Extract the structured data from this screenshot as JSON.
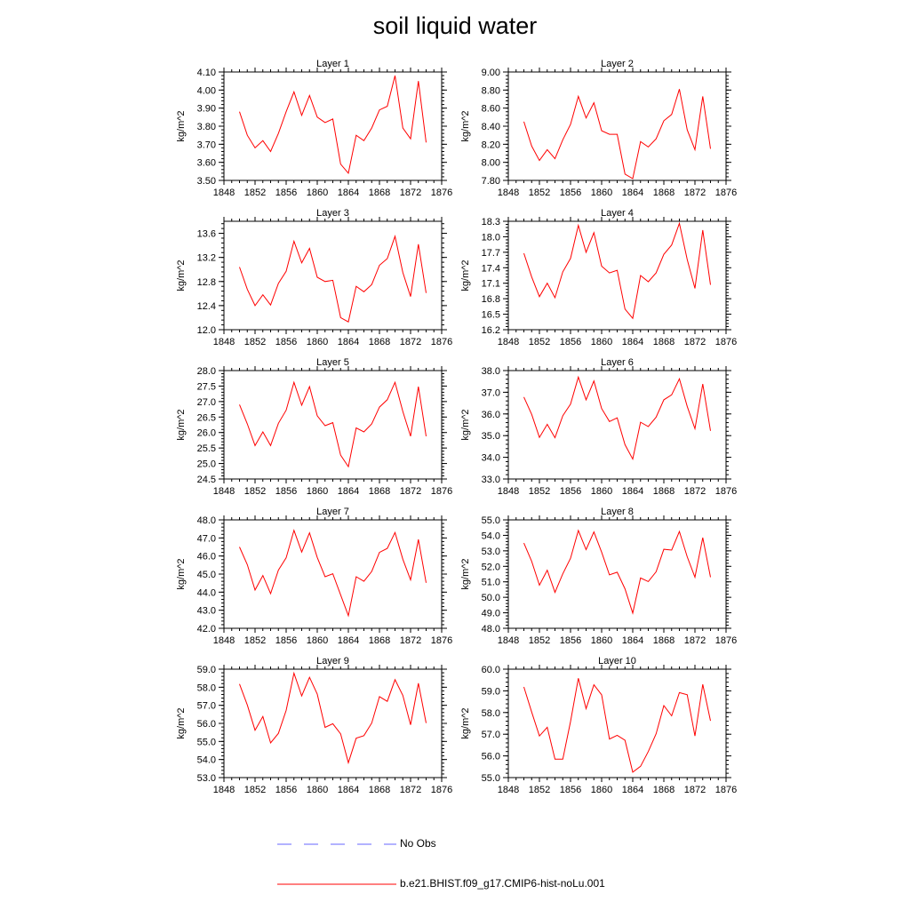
{
  "title": "soil liquid water",
  "colors": {
    "model": "#ff0000",
    "obs": "#6666ff",
    "axis": "#000000"
  },
  "legend": {
    "obs_label": "No Obs",
    "model_label": "b.e21.BHIST.f09_g17.CMIP6-hist-noLu.001"
  },
  "chart_data": [
    {
      "type": "line",
      "title": "Layer 1",
      "ylabel": "kg/m^2",
      "xlim": [
        1848,
        1876
      ],
      "x_ticks": [
        1848,
        1852,
        1856,
        1860,
        1864,
        1868,
        1872,
        1876
      ],
      "ylim": [
        3.5,
        4.1
      ],
      "y_ticks": [
        "3.50",
        "3.60",
        "3.70",
        "3.80",
        "3.90",
        "4.00",
        "4.10"
      ],
      "series": [
        {
          "x": [
            1850,
            1851,
            1852,
            1853,
            1854,
            1855,
            1856,
            1857,
            1858,
            1859,
            1860,
            1861,
            1862,
            1863,
            1864,
            1865,
            1866,
            1867,
            1868,
            1869,
            1870,
            1871,
            1872,
            1873,
            1874
          ],
          "values": [
            3.88,
            3.75,
            3.68,
            3.72,
            3.66,
            3.76,
            3.88,
            3.99,
            3.86,
            3.97,
            3.85,
            3.82,
            3.84,
            3.59,
            3.54,
            3.75,
            3.72,
            3.79,
            3.89,
            3.91,
            4.08,
            3.79,
            3.73,
            4.05,
            3.71
          ]
        }
      ]
    },
    {
      "type": "line",
      "title": "Layer 2",
      "ylabel": "kg/m^2",
      "xlim": [
        1848,
        1876
      ],
      "x_ticks": [
        1848,
        1852,
        1856,
        1860,
        1864,
        1868,
        1872,
        1876
      ],
      "ylim": [
        7.8,
        9.0
      ],
      "y_ticks": [
        "7.80",
        "8.00",
        "8.20",
        "8.40",
        "8.60",
        "8.80",
        "9.00"
      ],
      "series": [
        {
          "x": [
            1850,
            1851,
            1852,
            1853,
            1854,
            1855,
            1856,
            1857,
            1858,
            1859,
            1860,
            1861,
            1862,
            1863,
            1864,
            1865,
            1866,
            1867,
            1868,
            1869,
            1870,
            1871,
            1872,
            1873,
            1874
          ],
          "values": [
            8.45,
            8.18,
            8.02,
            8.14,
            8.04,
            8.25,
            8.42,
            8.73,
            8.49,
            8.66,
            8.35,
            8.31,
            8.31,
            7.87,
            7.82,
            8.23,
            8.17,
            8.26,
            8.46,
            8.53,
            8.81,
            8.36,
            8.14,
            8.73,
            8.15
          ]
        }
      ]
    },
    {
      "type": "line",
      "title": "Layer 3",
      "ylabel": "kg/m^2",
      "xlim": [
        1848,
        1876
      ],
      "x_ticks": [
        1848,
        1852,
        1856,
        1860,
        1864,
        1868,
        1872,
        1876
      ],
      "ylim": [
        12.0,
        13.8
      ],
      "y_ticks": [
        "12.0",
        "12.4",
        "12.8",
        "13.2",
        "13.6"
      ],
      "series": [
        {
          "x": [
            1850,
            1851,
            1852,
            1853,
            1854,
            1855,
            1856,
            1857,
            1858,
            1859,
            1860,
            1861,
            1862,
            1863,
            1864,
            1865,
            1866,
            1867,
            1868,
            1869,
            1870,
            1871,
            1872,
            1873,
            1874
          ],
          "values": [
            13.04,
            12.67,
            12.4,
            12.58,
            12.41,
            12.77,
            12.97,
            13.47,
            13.11,
            13.35,
            12.87,
            12.8,
            12.82,
            12.2,
            12.13,
            12.72,
            12.63,
            12.75,
            13.07,
            13.18,
            13.55,
            12.95,
            12.55,
            13.42,
            12.61
          ]
        }
      ]
    },
    {
      "type": "line",
      "title": "Layer 4",
      "ylabel": "kg/m^2",
      "xlim": [
        1848,
        1876
      ],
      "x_ticks": [
        1848,
        1852,
        1856,
        1860,
        1864,
        1868,
        1872,
        1876
      ],
      "ylim": [
        16.2,
        18.3
      ],
      "y_ticks": [
        "16.2",
        "16.5",
        "16.8",
        "17.1",
        "17.4",
        "17.7",
        "18.0",
        "18.3"
      ],
      "series": [
        {
          "x": [
            1850,
            1851,
            1852,
            1853,
            1854,
            1855,
            1856,
            1857,
            1858,
            1859,
            1860,
            1861,
            1862,
            1863,
            1864,
            1865,
            1866,
            1867,
            1868,
            1869,
            1870,
            1871,
            1872,
            1873,
            1874
          ],
          "values": [
            17.68,
            17.22,
            16.84,
            17.1,
            16.82,
            17.32,
            17.58,
            18.22,
            17.7,
            18.08,
            17.43,
            17.3,
            17.35,
            16.6,
            16.42,
            17.25,
            17.13,
            17.3,
            17.66,
            17.84,
            18.26,
            17.56,
            17.0,
            18.13,
            17.07
          ]
        }
      ]
    },
    {
      "type": "line",
      "title": "Layer 5",
      "ylabel": "kg/m^2",
      "xlim": [
        1848,
        1876
      ],
      "x_ticks": [
        1848,
        1852,
        1856,
        1860,
        1864,
        1868,
        1872,
        1876
      ],
      "ylim": [
        24.5,
        28.0
      ],
      "y_ticks": [
        "24.5",
        "25.0",
        "25.5",
        "26.0",
        "26.5",
        "27.0",
        "27.5",
        "28.0"
      ],
      "series": [
        {
          "x": [
            1850,
            1851,
            1852,
            1853,
            1854,
            1855,
            1856,
            1857,
            1858,
            1859,
            1860,
            1861,
            1862,
            1863,
            1864,
            1865,
            1866,
            1867,
            1868,
            1869,
            1870,
            1871,
            1872,
            1873,
            1874
          ],
          "values": [
            26.9,
            26.28,
            25.58,
            26.02,
            25.58,
            26.3,
            26.72,
            27.62,
            26.88,
            27.48,
            26.54,
            26.22,
            26.32,
            25.27,
            24.9,
            26.15,
            26.02,
            26.28,
            26.82,
            27.06,
            27.62,
            26.68,
            25.88,
            27.48,
            25.88
          ]
        }
      ]
    },
    {
      "type": "line",
      "title": "Layer 6",
      "ylabel": "kg/m^2",
      "xlim": [
        1848,
        1876
      ],
      "x_ticks": [
        1848,
        1852,
        1856,
        1860,
        1864,
        1868,
        1872,
        1876
      ],
      "ylim": [
        33.0,
        38.0
      ],
      "y_ticks": [
        "33.0",
        "34.0",
        "35.0",
        "36.0",
        "37.0",
        "38.0"
      ],
      "series": [
        {
          "x": [
            1850,
            1851,
            1852,
            1853,
            1854,
            1855,
            1856,
            1857,
            1858,
            1859,
            1860,
            1861,
            1862,
            1863,
            1864,
            1865,
            1866,
            1867,
            1868,
            1869,
            1870,
            1871,
            1872,
            1873,
            1874
          ],
          "values": [
            36.78,
            35.98,
            34.92,
            35.52,
            34.9,
            35.92,
            36.45,
            37.7,
            36.65,
            37.52,
            36.25,
            35.65,
            35.82,
            34.58,
            33.92,
            35.62,
            35.42,
            35.85,
            36.65,
            36.88,
            37.62,
            36.35,
            35.32,
            37.38,
            35.22
          ]
        }
      ]
    },
    {
      "type": "line",
      "title": "Layer 7",
      "ylabel": "kg/m^2",
      "xlim": [
        1848,
        1876
      ],
      "x_ticks": [
        1848,
        1852,
        1856,
        1860,
        1864,
        1868,
        1872,
        1876
      ],
      "ylim": [
        42.0,
        48.0
      ],
      "y_ticks": [
        "42.0",
        "43.0",
        "44.0",
        "45.0",
        "46.0",
        "47.0",
        "48.0"
      ],
      "series": [
        {
          "x": [
            1850,
            1851,
            1852,
            1853,
            1854,
            1855,
            1856,
            1857,
            1858,
            1859,
            1860,
            1861,
            1862,
            1863,
            1864,
            1865,
            1866,
            1867,
            1868,
            1869,
            1870,
            1871,
            1872,
            1873,
            1874
          ],
          "values": [
            46.5,
            45.52,
            44.12,
            44.92,
            43.92,
            45.22,
            45.9,
            47.42,
            46.22,
            47.28,
            45.92,
            44.85,
            45.02,
            43.85,
            42.7,
            44.85,
            44.6,
            45.15,
            46.2,
            46.42,
            47.3,
            45.82,
            44.68,
            46.92,
            44.52
          ]
        }
      ]
    },
    {
      "type": "line",
      "title": "Layer 8",
      "ylabel": "kg/m^2",
      "xlim": [
        1848,
        1876
      ],
      "x_ticks": [
        1848,
        1852,
        1856,
        1860,
        1864,
        1868,
        1872,
        1876
      ],
      "ylim": [
        48.0,
        55.0
      ],
      "y_ticks": [
        "48.0",
        "49.0",
        "50.0",
        "51.0",
        "52.0",
        "53.0",
        "54.0",
        "55.0"
      ],
      "series": [
        {
          "x": [
            1850,
            1851,
            1852,
            1853,
            1854,
            1855,
            1856,
            1857,
            1858,
            1859,
            1860,
            1861,
            1862,
            1863,
            1864,
            1865,
            1866,
            1867,
            1868,
            1869,
            1870,
            1871,
            1872,
            1873,
            1874
          ],
          "values": [
            53.5,
            52.32,
            50.78,
            51.75,
            50.32,
            51.52,
            52.52,
            54.32,
            53.08,
            54.22,
            52.92,
            51.45,
            51.62,
            50.55,
            48.98,
            51.25,
            51.02,
            51.65,
            53.1,
            53.05,
            54.25,
            52.62,
            51.3,
            53.85,
            51.3
          ]
        }
      ]
    },
    {
      "type": "line",
      "title": "Layer 9",
      "ylabel": "kg/m^2",
      "xlim": [
        1848,
        1876
      ],
      "x_ticks": [
        1848,
        1852,
        1856,
        1860,
        1864,
        1868,
        1872,
        1876
      ],
      "ylim": [
        53.0,
        59.0
      ],
      "y_ticks": [
        "53.0",
        "54.0",
        "55.0",
        "56.0",
        "57.0",
        "58.0",
        "59.0"
      ],
      "series": [
        {
          "x": [
            1850,
            1851,
            1852,
            1853,
            1854,
            1855,
            1856,
            1857,
            1858,
            1859,
            1860,
            1861,
            1862,
            1863,
            1864,
            1865,
            1866,
            1867,
            1868,
            1869,
            1870,
            1871,
            1872,
            1873,
            1874
          ],
          "values": [
            58.18,
            57.02,
            55.62,
            56.38,
            54.92,
            55.45,
            56.72,
            58.78,
            57.52,
            58.55,
            57.62,
            55.78,
            55.98,
            55.42,
            53.82,
            55.18,
            55.32,
            56.02,
            57.48,
            57.22,
            58.42,
            57.55,
            55.92,
            58.22,
            56.02
          ]
        }
      ]
    },
    {
      "type": "line",
      "title": "Layer 10",
      "ylabel": "kg/m^2",
      "xlim": [
        1848,
        1876
      ],
      "x_ticks": [
        1848,
        1852,
        1856,
        1860,
        1864,
        1868,
        1872,
        1876
      ],
      "ylim": [
        55.0,
        60.0
      ],
      "y_ticks": [
        "55.0",
        "56.0",
        "57.0",
        "58.0",
        "59.0",
        "60.0"
      ],
      "series": [
        {
          "x": [
            1850,
            1851,
            1852,
            1853,
            1854,
            1855,
            1856,
            1857,
            1858,
            1859,
            1860,
            1861,
            1862,
            1863,
            1864,
            1865,
            1866,
            1867,
            1868,
            1869,
            1870,
            1871,
            1872,
            1873,
            1874
          ],
          "values": [
            59.18,
            58.02,
            56.92,
            57.32,
            55.85,
            55.85,
            57.58,
            59.58,
            58.18,
            59.28,
            58.82,
            56.78,
            56.95,
            56.72,
            55.25,
            55.52,
            56.2,
            57.02,
            58.32,
            57.85,
            58.92,
            58.82,
            56.92,
            59.3,
            57.62
          ]
        }
      ]
    }
  ]
}
